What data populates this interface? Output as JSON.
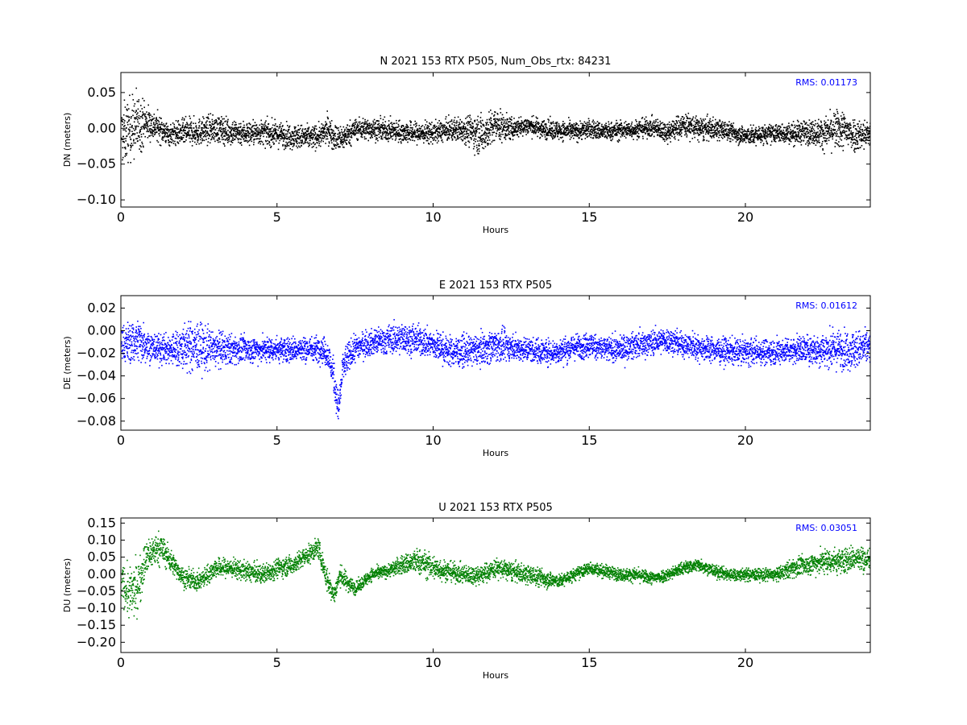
{
  "chart_data": [
    {
      "type": "scatter",
      "title": "N 2021 153 RTX  P505, Num_Obs_rtx: 84231",
      "xlabel": "Hours",
      "ylabel": "DN (meters)",
      "xlim": [
        0,
        24
      ],
      "ylim": [
        -0.11,
        0.078
      ],
      "xticks": [
        0,
        5,
        10,
        15,
        20
      ],
      "xtick_labels": [
        "0",
        "5",
        "10",
        "15",
        "20"
      ],
      "yticks": [
        0.05,
        0.0,
        -0.05,
        -0.1
      ],
      "ytick_labels": [
        "0.05",
        "0.00",
        "−0.05",
        "−0.10"
      ],
      "color": "#000000",
      "annotation": "RMS:  0.01173",
      "grid": false,
      "series": [
        {
          "x": [
            0,
            0.25,
            0.5,
            0.75,
            1,
            1.25,
            1.5,
            2,
            2.5,
            3,
            3.5,
            4,
            4.5,
            5,
            5.5,
            6,
            6.4,
            6.6,
            6.8,
            7,
            7.5,
            8,
            8.5,
            9,
            9.5,
            10,
            10.5,
            11,
            11.5,
            12,
            12.5,
            13,
            13.5,
            14,
            14.5,
            15,
            15.5,
            16,
            16.5,
            17,
            17.5,
            18,
            18.5,
            19,
            19.5,
            20,
            20.5,
            21,
            21.5,
            22,
            22.5,
            23,
            23.5,
            24
          ],
          "center": [
            -0.01,
            0.0,
            0.005,
            0.01,
            0.005,
            0.0,
            -0.008,
            -0.005,
            -0.004,
            0.0,
            -0.004,
            -0.006,
            -0.005,
            -0.008,
            -0.01,
            -0.012,
            -0.01,
            0.0,
            -0.01,
            -0.015,
            0.0,
            0.0,
            -0.002,
            -0.004,
            -0.006,
            -0.005,
            -0.002,
            0.0,
            -0.008,
            0.005,
            0.0,
            0.005,
            0.0,
            -0.002,
            -0.004,
            0.0,
            -0.004,
            -0.002,
            0.0,
            0.002,
            -0.004,
            0.006,
            0.0,
            0.0,
            -0.004,
            -0.01,
            -0.008,
            -0.006,
            -0.006,
            -0.004,
            -0.006,
            0.0,
            -0.008,
            -0.008
          ],
          "spread": [
            0.045,
            0.045,
            0.05,
            0.03,
            0.022,
            0.02,
            0.016,
            0.02,
            0.02,
            0.02,
            0.02,
            0.018,
            0.018,
            0.018,
            0.018,
            0.018,
            0.016,
            0.02,
            0.02,
            0.02,
            0.016,
            0.016,
            0.016,
            0.016,
            0.016,
            0.016,
            0.016,
            0.02,
            0.03,
            0.025,
            0.016,
            0.014,
            0.014,
            0.014,
            0.014,
            0.014,
            0.014,
            0.014,
            0.014,
            0.014,
            0.016,
            0.018,
            0.018,
            0.016,
            0.014,
            0.014,
            0.014,
            0.014,
            0.016,
            0.018,
            0.022,
            0.03,
            0.025,
            0.02
          ]
        }
      ]
    },
    {
      "type": "scatter",
      "title": "E 2021 153 RTX  P505",
      "xlabel": "Hours",
      "ylabel": "DE (meters)",
      "xlim": [
        0,
        24
      ],
      "ylim": [
        -0.088,
        0.031
      ],
      "xticks": [
        0,
        5,
        10,
        15,
        20
      ],
      "xtick_labels": [
        "0",
        "5",
        "10",
        "15",
        "20"
      ],
      "yticks": [
        0.02,
        0.0,
        -0.02,
        -0.04,
        -0.06,
        -0.08
      ],
      "ytick_labels": [
        "0.02",
        "0.00",
        "−0.02",
        "−0.04",
        "−0.06",
        "−0.08"
      ],
      "color": "#0000ff",
      "annotation": "RMS:  0.01612",
      "grid": false,
      "series": [
        {
          "x": [
            0,
            0.25,
            0.5,
            0.75,
            1,
            1.5,
            2,
            2.5,
            3,
            3.5,
            4,
            4.5,
            5,
            5.5,
            6,
            6.4,
            6.6,
            6.8,
            6.95,
            7.1,
            7.5,
            8,
            8.5,
            9,
            9.5,
            10,
            10.5,
            11,
            11.5,
            12,
            12.5,
            13,
            13.5,
            14,
            14.5,
            15,
            15.5,
            16,
            16.5,
            17,
            17.5,
            18,
            18.5,
            19,
            19.5,
            20,
            20.5,
            21,
            21.5,
            22,
            22.5,
            23,
            23.5,
            24
          ],
          "center": [
            -0.012,
            -0.01,
            -0.008,
            -0.01,
            -0.015,
            -0.016,
            -0.014,
            -0.014,
            -0.016,
            -0.016,
            -0.016,
            -0.016,
            -0.016,
            -0.016,
            -0.016,
            -0.015,
            -0.02,
            -0.04,
            -0.07,
            -0.03,
            -0.014,
            -0.01,
            -0.008,
            -0.006,
            -0.008,
            -0.012,
            -0.018,
            -0.018,
            -0.016,
            -0.012,
            -0.014,
            -0.016,
            -0.018,
            -0.018,
            -0.014,
            -0.012,
            -0.016,
            -0.016,
            -0.012,
            -0.01,
            -0.008,
            -0.012,
            -0.014,
            -0.016,
            -0.018,
            -0.018,
            -0.018,
            -0.018,
            -0.016,
            -0.016,
            -0.016,
            -0.016,
            -0.016,
            -0.014
          ],
          "spread": [
            0.016,
            0.02,
            0.022,
            0.018,
            0.014,
            0.014,
            0.022,
            0.024,
            0.018,
            0.014,
            0.012,
            0.012,
            0.012,
            0.012,
            0.012,
            0.012,
            0.014,
            0.016,
            0.016,
            0.016,
            0.012,
            0.012,
            0.014,
            0.014,
            0.014,
            0.014,
            0.014,
            0.014,
            0.014,
            0.016,
            0.012,
            0.012,
            0.012,
            0.012,
            0.012,
            0.012,
            0.012,
            0.012,
            0.012,
            0.012,
            0.012,
            0.012,
            0.012,
            0.012,
            0.012,
            0.012,
            0.012,
            0.012,
            0.012,
            0.014,
            0.016,
            0.018,
            0.018,
            0.016
          ]
        }
      ]
    },
    {
      "type": "scatter",
      "title": "U 2021 153 RTX  P505",
      "xlabel": "Hours",
      "ylabel": "DU (meters)",
      "xlim": [
        0,
        24
      ],
      "ylim": [
        -0.23,
        0.165
      ],
      "xticks": [
        0,
        5,
        10,
        15,
        20
      ],
      "xtick_labels": [
        "0",
        "5",
        "10",
        "15",
        "20"
      ],
      "yticks": [
        0.15,
        0.1,
        0.05,
        0.0,
        -0.05,
        -0.1,
        -0.15,
        -0.2
      ],
      "ytick_labels": [
        "0.15",
        "0.10",
        "0.05",
        "0.00",
        "−0.05",
        "−0.10",
        "−0.15",
        "−0.20"
      ],
      "color": "#008000",
      "annotation": "RMS:  0.03051",
      "grid": false,
      "series": [
        {
          "x": [
            0,
            0.25,
            0.5,
            0.75,
            1,
            1.25,
            1.5,
            1.75,
            2,
            2.5,
            3,
            3.5,
            4,
            4.5,
            5,
            5.5,
            6,
            6.3,
            6.6,
            6.8,
            7,
            7.2,
            7.5,
            8,
            8.5,
            9,
            9.5,
            10,
            10.5,
            11,
            11.5,
            12,
            12.5,
            13,
            13.5,
            14,
            14.5,
            15,
            15.5,
            16,
            16.5,
            17,
            17.5,
            18,
            18.5,
            19,
            19.5,
            20,
            20.5,
            21,
            21.5,
            22,
            22.5,
            23,
            23.5,
            24
          ],
          "center": [
            -0.02,
            -0.06,
            -0.04,
            0.04,
            0.07,
            0.08,
            0.05,
            0.02,
            -0.01,
            -0.02,
            0.02,
            0.02,
            0.01,
            0.0,
            0.02,
            0.03,
            0.06,
            0.08,
            -0.02,
            -0.06,
            0.0,
            -0.02,
            -0.04,
            0.0,
            0.01,
            0.03,
            0.04,
            0.02,
            0.01,
            0.0,
            0.0,
            0.02,
            0.01,
            0.0,
            -0.01,
            -0.02,
            0.0,
            0.02,
            0.01,
            0.0,
            0.0,
            -0.01,
            0.0,
            0.02,
            0.03,
            0.01,
            0.0,
            0.0,
            0.0,
            0.0,
            0.02,
            0.03,
            0.04,
            0.04,
            0.05,
            0.04
          ],
          "spread": [
            0.05,
            0.08,
            0.08,
            0.06,
            0.05,
            0.05,
            0.04,
            0.03,
            0.03,
            0.03,
            0.03,
            0.03,
            0.03,
            0.03,
            0.03,
            0.03,
            0.03,
            0.03,
            0.04,
            0.03,
            0.03,
            0.03,
            0.02,
            0.02,
            0.02,
            0.03,
            0.04,
            0.04,
            0.03,
            0.03,
            0.03,
            0.03,
            0.03,
            0.03,
            0.03,
            0.02,
            0.02,
            0.02,
            0.02,
            0.02,
            0.02,
            0.02,
            0.02,
            0.02,
            0.02,
            0.02,
            0.02,
            0.02,
            0.02,
            0.02,
            0.03,
            0.03,
            0.04,
            0.04,
            0.04,
            0.04
          ]
        }
      ]
    }
  ]
}
